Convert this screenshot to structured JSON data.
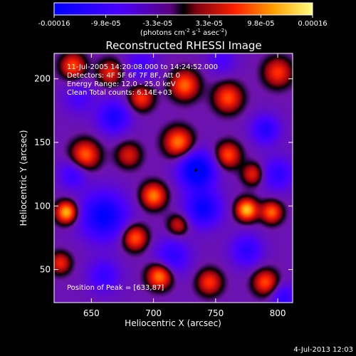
{
  "chart_data": {
    "type": "heatmap",
    "title": "Reconstructed RHESSI Image",
    "xlabel": "Heliocentric X (arcsec)",
    "ylabel": "Heliocentric Y (arcsec)",
    "xlim": [
      620,
      812
    ],
    "ylim": [
      24,
      220
    ],
    "x_ticks": [
      650,
      700,
      750,
      800
    ],
    "y_ticks": [
      50,
      100,
      150,
      200
    ],
    "colorbar": {
      "ticks": [
        "-0.00016",
        "-9.8e-05",
        "-3.3e-05",
        "3.3e-05",
        "9.8e-05",
        "0.00016"
      ],
      "unit_main": "(photons cm",
      "unit_sup1": "-2",
      "unit_mid": " s",
      "unit_sup2": "-1",
      "unit_end": " asec",
      "unit_sup3": "-2",
      "unit_close": ")",
      "range": [
        -0.00016,
        0.00016
      ]
    },
    "annotations": {
      "time": "11-Jul-2005 14:20:08.000 to 14:24:52.000",
      "detectors": "Detectors: 4F 5F 6F 7F 8F, Att 0",
      "energy": "Energy Range: 12.0 - 25.0 keV",
      "clean": "Clean     Total counts: 6.14E+03",
      "peak": "Position of Peak = [633,87]"
    },
    "peak_marker": [
      734,
      128
    ],
    "blobs": [
      {
        "x": 735,
        "y": 128,
        "v": -0.00016,
        "r": 10
      },
      {
        "x": 740,
        "y": 98,
        "v": -0.00012,
        "r": 10
      },
      {
        "x": 660,
        "y": 92,
        "v": -0.00013,
        "r": 13
      },
      {
        "x": 668,
        "y": 170,
        "v": -0.0001,
        "r": 9
      },
      {
        "x": 790,
        "y": 160,
        "v": -9e-05,
        "r": 8
      },
      {
        "x": 715,
        "y": 60,
        "v": -8e-05,
        "r": 10
      },
      {
        "x": 635,
        "y": 125,
        "v": -7e-05,
        "r": 8
      },
      {
        "x": 775,
        "y": 65,
        "v": -8e-05,
        "r": 9
      },
      {
        "x": 800,
        "y": 125,
        "v": -8e-05,
        "r": 9
      },
      {
        "x": 660,
        "y": 45,
        "v": -7e-05,
        "r": 9
      },
      {
        "x": 690,
        "y": 210,
        "v": -6e-05,
        "r": 9
      },
      {
        "x": 640,
        "y": 185,
        "v": -5e-05,
        "r": 9
      },
      {
        "x": 805,
        "y": 28,
        "v": -8e-05,
        "r": 7
      },
      {
        "x": 755,
        "y": 215,
        "v": -5e-05,
        "r": 8
      },
      {
        "x": 630,
        "y": 95,
        "v": 0.00016,
        "r": 6
      },
      {
        "x": 775,
        "y": 97,
        "v": 0.00016,
        "r": 6
      },
      {
        "x": 700,
        "y": 108,
        "v": 0.00013,
        "r": 7
      },
      {
        "x": 720,
        "y": 150,
        "v": 0.00013,
        "r": 8
      },
      {
        "x": 645,
        "y": 140,
        "v": 0.00012,
        "r": 8
      },
      {
        "x": 635,
        "y": 210,
        "v": 0.00011,
        "r": 7
      },
      {
        "x": 760,
        "y": 140,
        "v": 0.00011,
        "r": 7
      },
      {
        "x": 795,
        "y": 95,
        "v": 0.00012,
        "r": 6
      },
      {
        "x": 705,
        "y": 45,
        "v": 0.00014,
        "r": 7
      },
      {
        "x": 685,
        "y": 75,
        "v": 0.00012,
        "r": 7
      },
      {
        "x": 790,
        "y": 40,
        "v": 0.00011,
        "r": 7
      },
      {
        "x": 725,
        "y": 195,
        "v": 0.00012,
        "r": 8
      },
      {
        "x": 690,
        "y": 185,
        "v": 0.0001,
        "r": 7
      },
      {
        "x": 760,
        "y": 185,
        "v": 0.00011,
        "r": 8
      },
      {
        "x": 800,
        "y": 205,
        "v": 0.0001,
        "r": 8
      },
      {
        "x": 665,
        "y": 205,
        "v": 9e-05,
        "r": 7
      },
      {
        "x": 745,
        "y": 40,
        "v": 0.0001,
        "r": 7
      },
      {
        "x": 625,
        "y": 55,
        "v": 9e-05,
        "r": 6
      },
      {
        "x": 680,
        "y": 140,
        "v": 8e-05,
        "r": 7
      },
      {
        "x": 780,
        "y": 125,
        "v": 9e-05,
        "r": 6
      },
      {
        "x": 720,
        "y": 85,
        "v": 8e-05,
        "r": 6
      }
    ]
  },
  "footer": {
    "timestamp": "4-Jul-2013 12:03"
  }
}
